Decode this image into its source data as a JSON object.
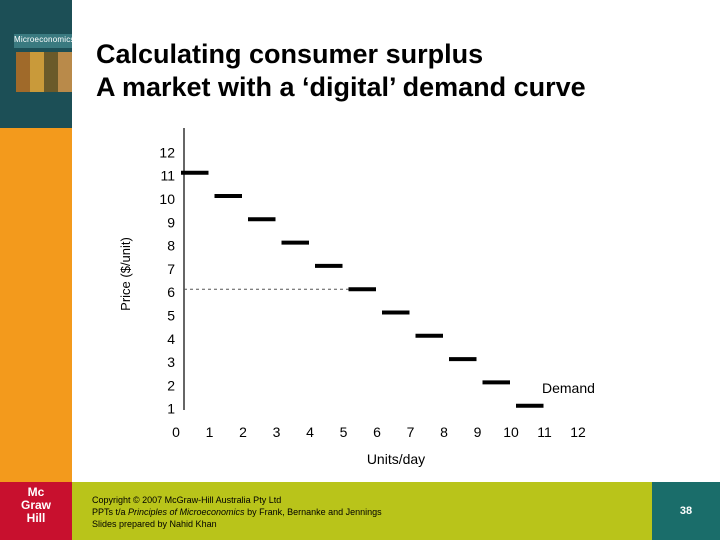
{
  "slide": {
    "title_line1": "Calculating consumer surplus",
    "title_line2": "A market with a ‘digital’ demand curve",
    "book_title": "Microeconomics",
    "logo": [
      "Mc",
      "Graw",
      "Hill"
    ],
    "copyright": {
      "line1": "Copyright © 2007 McGraw-Hill Australia Pty Ltd",
      "line2_prefix": "PPTs t/a ",
      "line2_book": "Principles of Microeconomics",
      "line2_suffix": " by Frank, Bernanke and Jennings",
      "line3": "Slides prepared by Nahid Khan"
    },
    "page_number": "38"
  },
  "colors": {
    "sidebar": "#f39a1c",
    "footer": "#b9c41a",
    "logo": "#c8102e",
    "page_box": "#1a6d6a",
    "steps": "#000000",
    "reference_line": "#555555"
  },
  "chart_data": {
    "type": "line",
    "title": "",
    "xlabel": "Units/day",
    "ylabel": "Price ($/unit)",
    "xlim": [
      0,
      12
    ],
    "ylim": [
      0,
      12
    ],
    "x_ticks": [
      "0",
      "1",
      "2",
      "3",
      "4",
      "5",
      "6",
      "7",
      "8",
      "9",
      "10",
      "11",
      "12"
    ],
    "y_ticks": [
      "1",
      "2",
      "3",
      "4",
      "5",
      "6",
      "7",
      "8",
      "9",
      "10",
      "11",
      "12"
    ],
    "grid": false,
    "series": [
      {
        "name": "Demand",
        "style": "digital-steps",
        "steps": [
          {
            "x_start": 0,
            "x_end": 1,
            "price": 11
          },
          {
            "x_start": 1,
            "x_end": 2,
            "price": 10
          },
          {
            "x_start": 2,
            "x_end": 3,
            "price": 9
          },
          {
            "x_start": 3,
            "x_end": 4,
            "price": 8
          },
          {
            "x_start": 4,
            "x_end": 5,
            "price": 7
          },
          {
            "x_start": 5,
            "x_end": 6,
            "price": 6
          },
          {
            "x_start": 6,
            "x_end": 7,
            "price": 5
          },
          {
            "x_start": 7,
            "x_end": 8,
            "price": 4
          },
          {
            "x_start": 8,
            "x_end": 9,
            "price": 3
          },
          {
            "x_start": 9,
            "x_end": 10,
            "price": 2
          },
          {
            "x_start": 10,
            "x_end": 11,
            "price": 1
          }
        ]
      }
    ],
    "reference_lines": [
      {
        "type": "horizontal",
        "y": 6,
        "x_from": 0,
        "x_to": 5,
        "style": "dashed"
      }
    ],
    "annotations": [
      {
        "text": "Demand",
        "x": 11,
        "y": 1
      }
    ]
  }
}
